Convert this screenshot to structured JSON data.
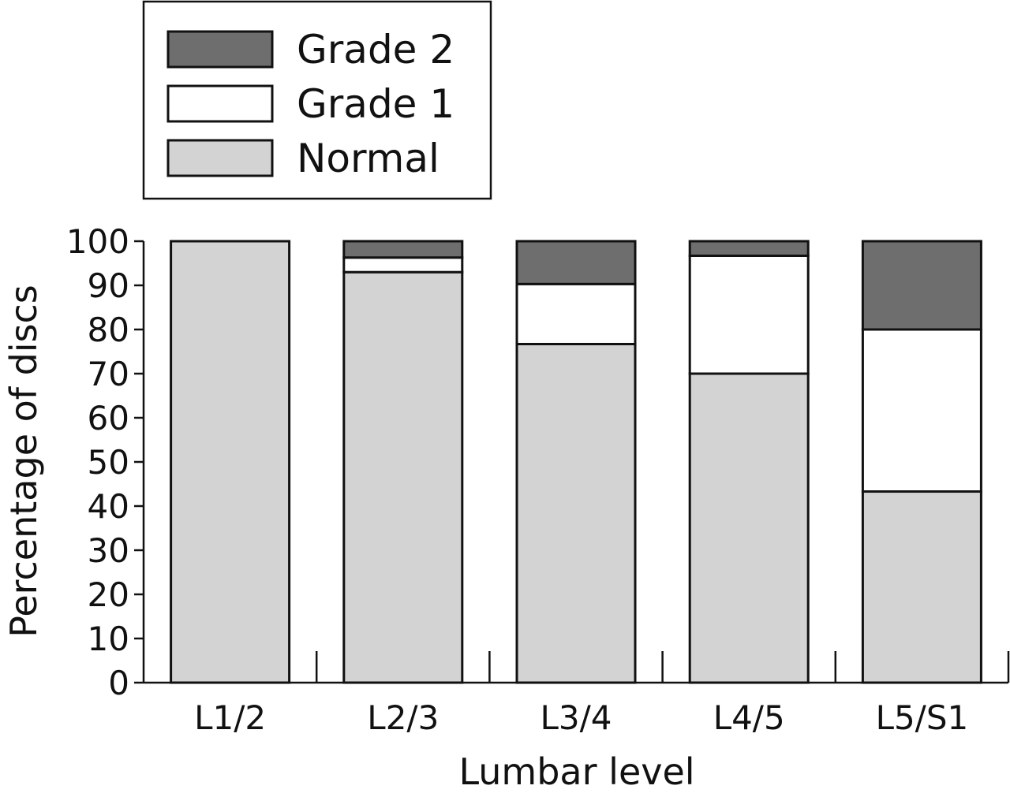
{
  "chart_data": {
    "type": "bar",
    "stacked": true,
    "categories": [
      "L1/2",
      "L2/3",
      "L3/4",
      "L4/5",
      "L5/S1"
    ],
    "series": [
      {
        "name": "Normal",
        "color": "#d3d3d3",
        "values": [
          100,
          93,
          76.7,
          70,
          43.3
        ]
      },
      {
        "name": "Grade 1",
        "color": "#ffffff",
        "values": [
          0,
          3.3,
          13.6,
          26.7,
          36.7
        ]
      },
      {
        "name": "Grade 2",
        "color": "#6e6e6e",
        "values": [
          0,
          3.7,
          9.7,
          3.3,
          20
        ]
      }
    ],
    "legend_order": [
      "Grade 2",
      "Grade 1",
      "Normal"
    ],
    "legend_position": "top-left",
    "xlabel": "Lumbar level",
    "ylabel": "Percentage of discs",
    "ylim": [
      0,
      100
    ],
    "yticks": [
      0,
      10,
      20,
      30,
      40,
      50,
      60,
      70,
      80,
      90,
      100
    ],
    "grid": false
  }
}
